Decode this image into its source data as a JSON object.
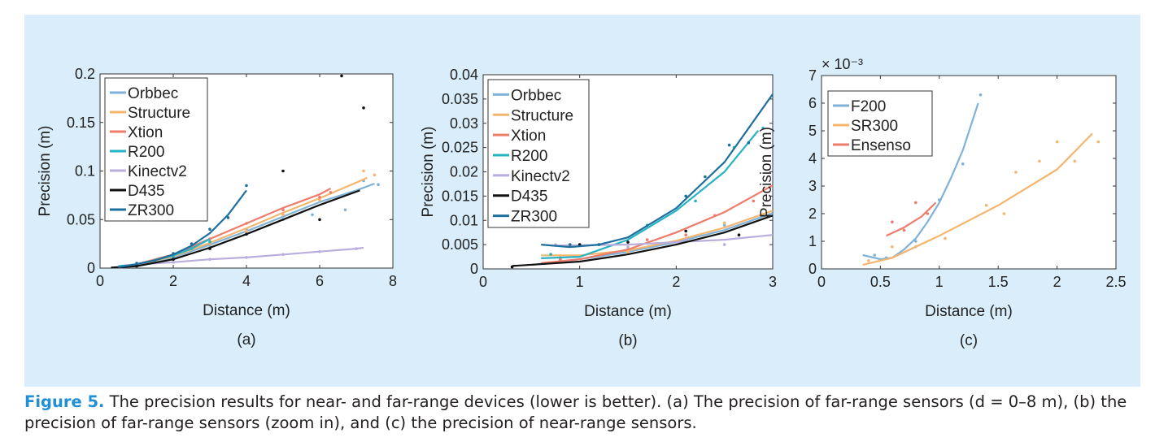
{
  "caption": {
    "label": "Figure 5.",
    "text": "The precision results for near- and far-range devices (lower is better). (a) The precision of far-range sensors (d = 0–8 m), (b) the precision of far-range sensors (zoom in), and (c) the precision of near-range sensors."
  },
  "chart_data": [
    {
      "type": "line",
      "panel_label": "(a)",
      "xlabel": "Distance (m)",
      "ylabel": "Precision (m)",
      "xlim": [
        0,
        8
      ],
      "ylim": [
        0,
        0.2
      ],
      "xticks": [
        0,
        2,
        4,
        6,
        8
      ],
      "xtick_labels": [
        "0",
        "2",
        "4",
        "6",
        "8"
      ],
      "yticks": [
        0,
        0.05,
        0.1,
        0.15,
        0.2
      ],
      "ytick_labels": [
        "0",
        "0.05",
        "0.1",
        "0.15",
        "0.2"
      ],
      "legend_position": "top-left",
      "series": [
        {
          "name": "Orbbec",
          "color": "#7fb2d8",
          "fit": [
            [
              0.5,
              0.001
            ],
            [
              1,
              0.003
            ],
            [
              2,
              0.011
            ],
            [
              3,
              0.024
            ],
            [
              4,
              0.038
            ],
            [
              5,
              0.053
            ],
            [
              6,
              0.068
            ],
            [
              7,
              0.08
            ],
            [
              7.5,
              0.087
            ]
          ],
          "points": [
            [
              1,
              0.004
            ],
            [
              2,
              0.01
            ],
            [
              3,
              0.023
            ],
            [
              4,
              0.04
            ],
            [
              5,
              0.05
            ],
            [
              5.8,
              0.055
            ],
            [
              6.7,
              0.06
            ],
            [
              7.2,
              0.09
            ],
            [
              7.6,
              0.086
            ]
          ]
        },
        {
          "name": "Structure",
          "color": "#f5b56e",
          "fit": [
            [
              0.5,
              0.001
            ],
            [
              1,
              0.003
            ],
            [
              2,
              0.012
            ],
            [
              3,
              0.026
            ],
            [
              4,
              0.041
            ],
            [
              5,
              0.057
            ],
            [
              6,
              0.072
            ],
            [
              7,
              0.088
            ],
            [
              7.3,
              0.093
            ]
          ],
          "points": [
            [
              1,
              0.004
            ],
            [
              2,
              0.012
            ],
            [
              3,
              0.025
            ],
            [
              4,
              0.038
            ],
            [
              5,
              0.055
            ],
            [
              6,
              0.07
            ],
            [
              7.2,
              0.1
            ],
            [
              7.5,
              0.096
            ]
          ]
        },
        {
          "name": "Xtion",
          "color": "#ee7c6b",
          "fit": [
            [
              0.5,
              0.001
            ],
            [
              1,
              0.004
            ],
            [
              2,
              0.014
            ],
            [
              3,
              0.03
            ],
            [
              4,
              0.046
            ],
            [
              5,
              0.062
            ],
            [
              6,
              0.076
            ],
            [
              6.3,
              0.082
            ]
          ],
          "points": [
            [
              1,
              0.004
            ],
            [
              2,
              0.013
            ],
            [
              3,
              0.03
            ],
            [
              4,
              0.046
            ],
            [
              5,
              0.06
            ],
            [
              6,
              0.073
            ],
            [
              6.3,
              0.078
            ]
          ]
        },
        {
          "name": "R200",
          "color": "#27b3c3",
          "fit": [
            [
              0.5,
              0.002
            ],
            [
              1,
              0.004
            ],
            [
              1.5,
              0.008
            ],
            [
              2,
              0.013
            ],
            [
              2.5,
              0.02
            ],
            [
              3,
              0.03
            ]
          ],
          "points": [
            [
              1,
              0.004
            ],
            [
              1.5,
              0.008
            ],
            [
              2,
              0.012
            ],
            [
              2.5,
              0.02
            ],
            [
              3,
              0.027
            ]
          ]
        },
        {
          "name": "Kinectv2",
          "color": "#b9aedc",
          "fit": [
            [
              0.7,
              0.003
            ],
            [
              2,
              0.006
            ],
            [
              3,
              0.009
            ],
            [
              4,
              0.011
            ],
            [
              5,
              0.014
            ],
            [
              6,
              0.017
            ],
            [
              7,
              0.02
            ],
            [
              7.2,
              0.021
            ]
          ],
          "points": [
            [
              1,
              0.004
            ],
            [
              2,
              0.006
            ],
            [
              3,
              0.009
            ],
            [
              4,
              0.011
            ],
            [
              5,
              0.014
            ],
            [
              6,
              0.017
            ],
            [
              7,
              0.02
            ]
          ]
        },
        {
          "name": "D435",
          "color": "#111111",
          "fit": [
            [
              0.3,
              0.0005
            ],
            [
              1,
              0.002
            ],
            [
              2,
              0.009
            ],
            [
              3,
              0.021
            ],
            [
              4,
              0.035
            ],
            [
              5,
              0.05
            ],
            [
              6,
              0.065
            ],
            [
              7.1,
              0.08
            ]
          ],
          "points": [
            [
              1,
              0.002
            ],
            [
              2,
              0.009
            ],
            [
              3,
              0.02
            ],
            [
              4,
              0.035
            ],
            [
              5,
              0.1
            ],
            [
              6,
              0.05
            ],
            [
              6.6,
              0.198
            ],
            [
              7.2,
              0.165
            ]
          ]
        },
        {
          "name": "ZR300",
          "color": "#1f6f9e",
          "fit": [
            [
              0.5,
              0.001
            ],
            [
              1,
              0.004
            ],
            [
              1.5,
              0.008
            ],
            [
              2,
              0.014
            ],
            [
              2.5,
              0.023
            ],
            [
              3,
              0.036
            ],
            [
              3.5,
              0.055
            ],
            [
              4,
              0.08
            ]
          ],
          "points": [
            [
              1,
              0.005
            ],
            [
              2,
              0.015
            ],
            [
              2.5,
              0.025
            ],
            [
              3,
              0.04
            ],
            [
              3.5,
              0.052
            ],
            [
              4,
              0.085
            ]
          ]
        }
      ]
    },
    {
      "type": "line",
      "panel_label": "(b)",
      "xlabel": "Distance (m)",
      "ylabel": "Precision (m)",
      "xlim": [
        0,
        3
      ],
      "ylim": [
        0,
        0.04
      ],
      "xticks": [
        0,
        1,
        2,
        3
      ],
      "xtick_labels": [
        "0",
        "1",
        "2",
        "3"
      ],
      "yticks": [
        0,
        0.005,
        0.01,
        0.015,
        0.02,
        0.025,
        0.03,
        0.035,
        0.04
      ],
      "ytick_labels": [
        "0",
        "0.005",
        "0.01",
        "0.015",
        "0.02",
        "0.025",
        "0.03",
        "0.035",
        "0.04"
      ],
      "legend_position": "top-left",
      "series": [
        {
          "name": "Orbbec",
          "color": "#7fb2d8",
          "fit": [
            [
              0.5,
              0.0008
            ],
            [
              1,
              0.002
            ],
            [
              1.5,
              0.0035
            ],
            [
              2,
              0.0055
            ],
            [
              2.5,
              0.008
            ],
            [
              3,
              0.0115
            ]
          ],
          "points": [
            [
              0.8,
              0.002
            ],
            [
              1.5,
              0.004
            ],
            [
              2.1,
              0.006
            ],
            [
              2.5,
              0.009
            ]
          ]
        },
        {
          "name": "Structure",
          "color": "#f5b56e",
          "fit": [
            [
              0.6,
              0.0028
            ],
            [
              1,
              0.0028
            ],
            [
              1.5,
              0.0038
            ],
            [
              2,
              0.0058
            ],
            [
              2.5,
              0.0085
            ],
            [
              3,
              0.012
            ]
          ],
          "points": [
            [
              0.8,
              0.0027
            ],
            [
              1.5,
              0.0035
            ],
            [
              2.1,
              0.006
            ],
            [
              2.5,
              0.0095
            ]
          ]
        },
        {
          "name": "Xtion",
          "color": "#ee7c6b",
          "fit": [
            [
              0.6,
              0.0012
            ],
            [
              1,
              0.002
            ],
            [
              1.5,
              0.004
            ],
            [
              2,
              0.0075
            ],
            [
              2.5,
              0.0117
            ],
            [
              3,
              0.0172
            ]
          ],
          "points": [
            [
              0.8,
              0.002
            ],
            [
              1.7,
              0.006
            ],
            [
              2.1,
              0.007
            ],
            [
              2.4,
              0.011
            ],
            [
              2.8,
              0.014
            ]
          ]
        },
        {
          "name": "R200",
          "color": "#27b3c3",
          "fit": [
            [
              0.6,
              0.0022
            ],
            [
              1,
              0.0025
            ],
            [
              1.5,
              0.006
            ],
            [
              2,
              0.012
            ],
            [
              2.5,
              0.02
            ],
            [
              2.85,
              0.0285
            ]
          ],
          "points": [
            [
              0.7,
              0.003
            ],
            [
              1.2,
              0.005
            ],
            [
              1.7,
              0.009
            ],
            [
              2.2,
              0.014
            ],
            [
              2.6,
              0.025
            ],
            [
              2.9,
              0.029
            ]
          ]
        },
        {
          "name": "Kinectv2",
          "color": "#b9aedc",
          "fit": [
            [
              0.75,
              0.0048
            ],
            [
              1.5,
              0.005
            ],
            [
              2,
              0.0055
            ],
            [
              2.5,
              0.006
            ],
            [
              3,
              0.007
            ]
          ],
          "points": [
            [
              0.75,
              0.005
            ],
            [
              1.5,
              0.0045
            ],
            [
              2.1,
              0.006
            ],
            [
              2.5,
              0.005
            ]
          ]
        },
        {
          "name": "D435",
          "color": "#111111",
          "fit": [
            [
              0.3,
              0.0006
            ],
            [
              1,
              0.0015
            ],
            [
              1.5,
              0.003
            ],
            [
              2,
              0.005
            ],
            [
              2.5,
              0.0075
            ],
            [
              3,
              0.011
            ]
          ],
          "points": [
            [
              0.3,
              0.0004
            ],
            [
              1,
              0.005
            ],
            [
              1.5,
              0.0055
            ],
            [
              2.1,
              0.0078
            ],
            [
              2.65,
              0.007
            ]
          ]
        },
        {
          "name": "ZR300",
          "color": "#1f6f9e",
          "fit": [
            [
              0.6,
              0.005
            ],
            [
              0.9,
              0.0045
            ],
            [
              1.2,
              0.005
            ],
            [
              1.5,
              0.0065
            ],
            [
              2,
              0.0125
            ],
            [
              2.5,
              0.022
            ],
            [
              3,
              0.036
            ]
          ],
          "points": [
            [
              0.9,
              0.005
            ],
            [
              1.2,
              0.005
            ],
            [
              2.1,
              0.015
            ],
            [
              2.3,
              0.019
            ],
            [
              2.55,
              0.0255
            ],
            [
              2.75,
              0.026
            ]
          ]
        }
      ]
    },
    {
      "type": "line",
      "panel_label": "(c)",
      "xlabel": "Distance (m)",
      "ylabel": "Precision (m)",
      "y_multiplier": "× 10⁻³",
      "xlim": [
        0,
        2.5
      ],
      "ylim": [
        0,
        7
      ],
      "xticks": [
        0,
        0.5,
        1,
        1.5,
        2,
        2.5
      ],
      "xtick_labels": [
        "0",
        "0.5",
        "1",
        "1.5",
        "2",
        "2.5"
      ],
      "yticks": [
        0,
        1,
        2,
        3,
        4,
        5,
        6,
        7
      ],
      "ytick_labels": [
        "0",
        "1",
        "2",
        "3",
        "4",
        "5",
        "6",
        "7"
      ],
      "legend_position": "top-left",
      "series": [
        {
          "name": "F200",
          "color": "#7fb2d8",
          "fit": [
            [
              0.35,
              0.5
            ],
            [
              0.5,
              0.35
            ],
            [
              0.6,
              0.4
            ],
            [
              0.7,
              0.7
            ],
            [
              0.8,
              1.1
            ],
            [
              0.9,
              1.7
            ],
            [
              1,
              2.4
            ],
            [
              1.1,
              3.3
            ],
            [
              1.2,
              4.3
            ],
            [
              1.33,
              6
            ]
          ],
          "points": [
            [
              0.45,
              0.5
            ],
            [
              0.55,
              0.4
            ],
            [
              0.8,
              1
            ],
            [
              1,
              2.5
            ],
            [
              1.2,
              3.8
            ],
            [
              1.35,
              6.3
            ]
          ]
        },
        {
          "name": "SR300",
          "color": "#f5b56e",
          "fit": [
            [
              0.35,
              0.15
            ],
            [
              0.6,
              0.4
            ],
            [
              1,
              1.2
            ],
            [
              1.5,
              2.3
            ],
            [
              2,
              3.6
            ],
            [
              2.3,
              4.9
            ]
          ],
          "points": [
            [
              0.4,
              0.3
            ],
            [
              0.6,
              0.8
            ],
            [
              0.8,
              0.8
            ],
            [
              1.05,
              1.1
            ],
            [
              1.4,
              2.3
            ],
            [
              1.55,
              2
            ],
            [
              1.65,
              3.5
            ],
            [
              1.85,
              3.9
            ],
            [
              2,
              4.6
            ],
            [
              2.15,
              3.9
            ],
            [
              2.35,
              4.6
            ]
          ]
        },
        {
          "name": "Ensenso",
          "color": "#ee7c6b",
          "fit": [
            [
              0.55,
              1.2
            ],
            [
              0.7,
              1.5
            ],
            [
              0.85,
              1.9
            ],
            [
              0.97,
              2.4
            ]
          ],
          "points": [
            [
              0.6,
              1.7
            ],
            [
              0.7,
              1.4
            ],
            [
              0.8,
              2.4
            ],
            [
              0.9,
              2
            ]
          ]
        }
      ]
    }
  ]
}
